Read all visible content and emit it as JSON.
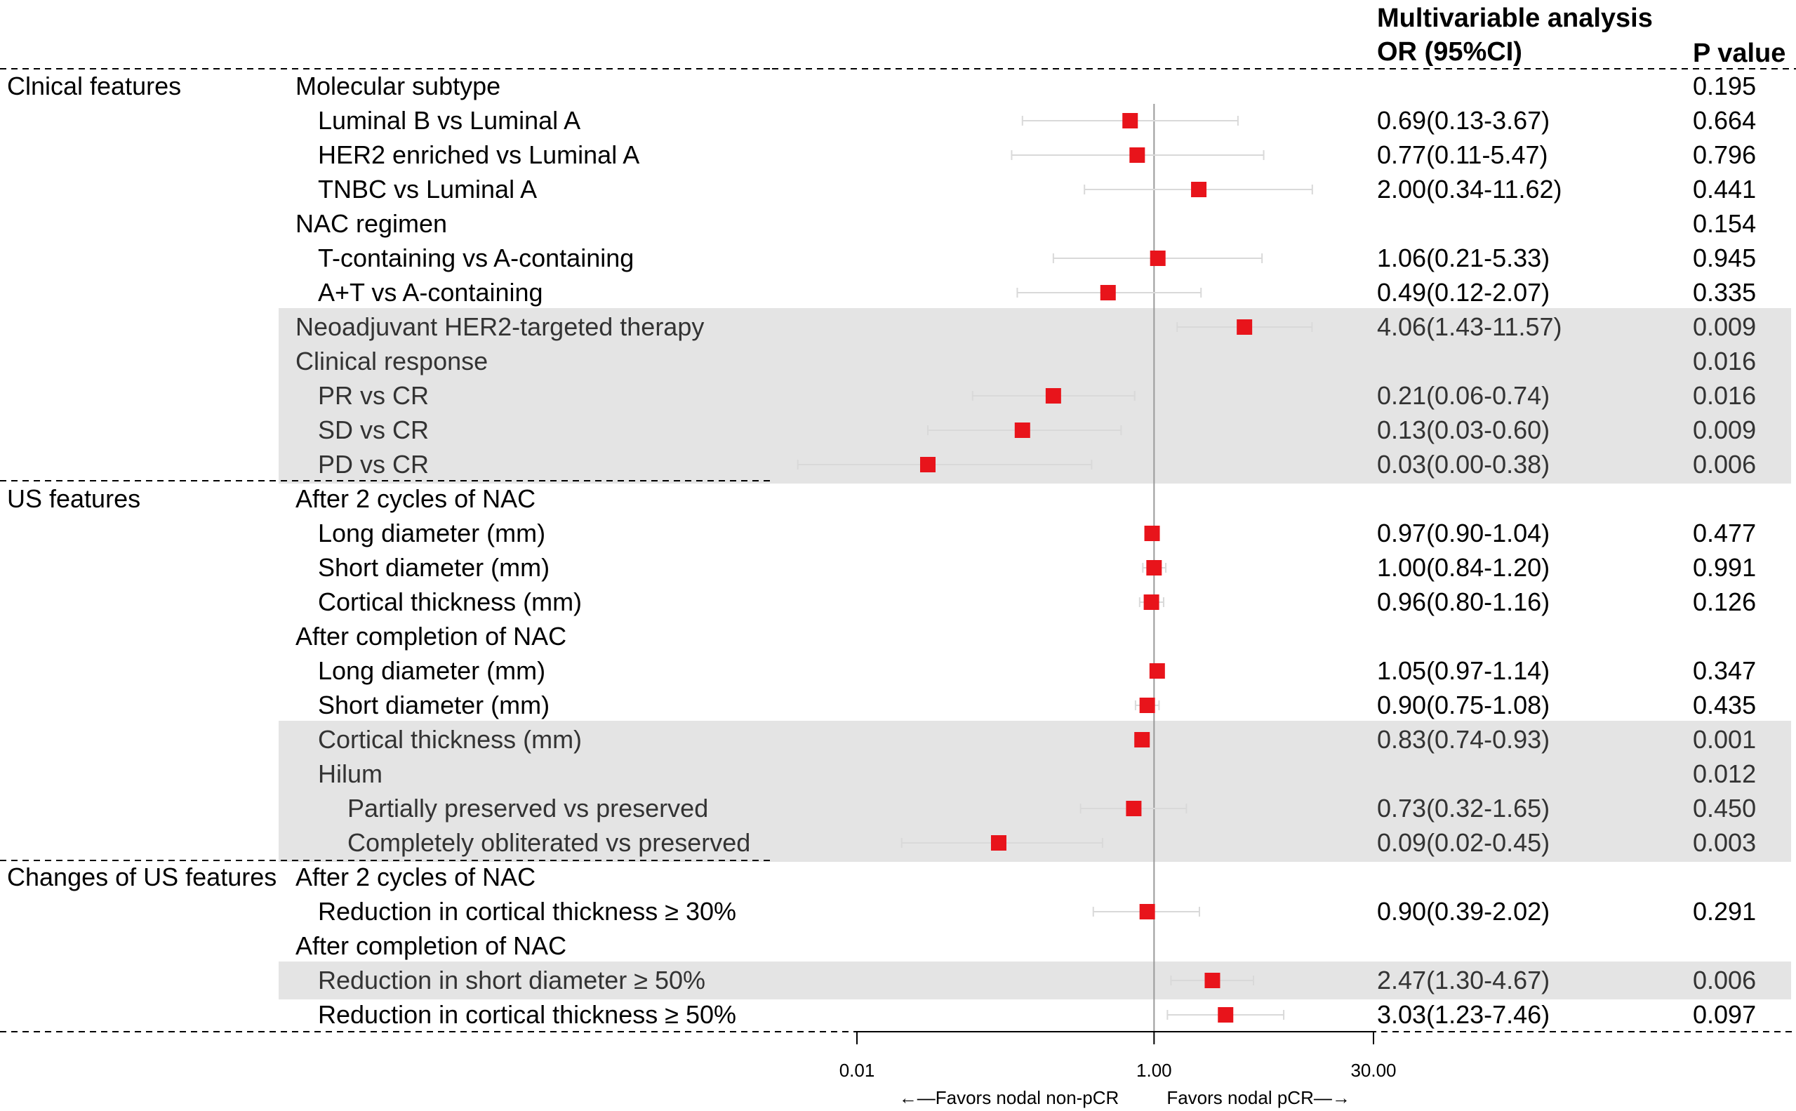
{
  "header": {
    "analysis_title": "Multivariable analysis",
    "or_label": "OR (95%CI)",
    "p_label": "P value"
  },
  "groups": [
    {
      "name": "Clnical features",
      "start_row": 0,
      "end_row": 11
    },
    {
      "name": "US features",
      "start_row": 12,
      "end_row": 22
    },
    {
      "name": "Changes of US features",
      "start_row": 23,
      "end_row": 27
    }
  ],
  "rows": [
    {
      "label": "Molecular subtype",
      "indent": 0,
      "or_text": "",
      "p": "0.195",
      "highlight": false
    },
    {
      "label": "Luminal B vs Luminal A",
      "indent": 1,
      "or_text": "0.69(0.13-3.67)",
      "p": "0.664",
      "highlight": false
    },
    {
      "label": "HER2 enriched vs Luminal A",
      "indent": 1,
      "or_text": "0.77(0.11-5.47)",
      "p": "0.796",
      "highlight": false
    },
    {
      "label": "TNBC vs Luminal A",
      "indent": 1,
      "or_text": "2.00(0.34-11.62)",
      "p": "0.441",
      "highlight": false
    },
    {
      "label": "NAC regimen",
      "indent": 0,
      "or_text": "",
      "p": "0.154",
      "highlight": false
    },
    {
      "label": "T-containing vs A-containing",
      "indent": 1,
      "or_text": "1.06(0.21-5.33)",
      "p": "0.945",
      "highlight": false
    },
    {
      "label": "A+T vs A-containing",
      "indent": 1,
      "or_text": "0.49(0.12-2.07)",
      "p": "0.335",
      "highlight": false
    },
    {
      "label": "Neoadjuvant HER2-targeted therapy",
      "indent": 0,
      "or_text": "4.06(1.43-11.57)",
      "p": "0.009",
      "highlight": true
    },
    {
      "label": "Clinical response",
      "indent": 0,
      "or_text": "",
      "p": "0.016",
      "highlight": true
    },
    {
      "label": "PR vs CR",
      "indent": 1,
      "or_text": "0.21(0.06-0.74)",
      "p": "0.016",
      "highlight": true
    },
    {
      "label": "SD vs CR",
      "indent": 1,
      "or_text": "0.13(0.03-0.60)",
      "p": "0.009",
      "highlight": true
    },
    {
      "label": "PD vs CR",
      "indent": 1,
      "or_text": "0.03(0.00-0.38)",
      "p": "0.006",
      "highlight": true
    },
    {
      "label": "After 2 cycles of NAC",
      "indent": 0,
      "or_text": "",
      "p": "",
      "highlight": false
    },
    {
      "label": "Long diameter (mm)",
      "indent": 1,
      "or_text": "0.97(0.90-1.04)",
      "p": "0.477",
      "highlight": false
    },
    {
      "label": "Short diameter (mm)",
      "indent": 1,
      "or_text": "1.00(0.84-1.20)",
      "p": "0.991",
      "highlight": false
    },
    {
      "label": "Cortical thickness (mm)",
      "indent": 1,
      "or_text": "0.96(0.80-1.16)",
      "p": "0.126",
      "highlight": false
    },
    {
      "label": "After completion of NAC",
      "indent": 0,
      "or_text": "",
      "p": "",
      "highlight": false
    },
    {
      "label": "Long diameter (mm)",
      "indent": 1,
      "or_text": "1.05(0.97-1.14)",
      "p": "0.347",
      "highlight": false
    },
    {
      "label": "Short diameter (mm)",
      "indent": 1,
      "or_text": "0.90(0.75-1.08)",
      "p": "0.435",
      "highlight": false
    },
    {
      "label": "Cortical thickness (mm)",
      "indent": 1,
      "or_text": "0.83(0.74-0.93)",
      "p": "0.001",
      "highlight": true
    },
    {
      "label": "Hilum",
      "indent": 1,
      "or_text": "",
      "p": "0.012",
      "highlight": true
    },
    {
      "label": "Partially preserved vs preserved",
      "indent": 2,
      "or_text": "0.73(0.32-1.65)",
      "p": "0.450",
      "highlight": true
    },
    {
      "label": "Completely obliterated vs preserved",
      "indent": 2,
      "or_text": "0.09(0.02-0.45)",
      "p": "0.003",
      "highlight": true
    },
    {
      "label": "After 2 cycles of NAC",
      "indent": 0,
      "or_text": "",
      "p": "",
      "highlight": false
    },
    {
      "label": "Reduction in cortical thickness ≥ 30%",
      "indent": 1,
      "or_text": "0.90(0.39-2.02)",
      "p": "0.291",
      "highlight": false
    },
    {
      "label": "After completion of NAC",
      "indent": 0,
      "or_text": "",
      "p": "",
      "highlight": false
    },
    {
      "label": "Reduction in short diameter ≥ 50%",
      "indent": 1,
      "or_text": "2.47(1.30-4.67)",
      "p": "0.006",
      "highlight": true
    },
    {
      "label": "Reduction in cortical thickness ≥ 50%",
      "indent": 1,
      "or_text": "3.03(1.23-7.46)",
      "p": "0.097",
      "highlight": false
    }
  ],
  "axis": {
    "ticks": [
      0.01,
      1.0,
      30.0
    ],
    "tick_labels": [
      "0.01",
      "1.00",
      "30.00"
    ],
    "reference": 1.0,
    "scale": "log",
    "favors_left": "←—Favors nodal non-pCR",
    "favors_right": "Favors nodal pCR—→"
  },
  "colors": {
    "marker": "#e8141b",
    "ci_line": "#d9d9d9",
    "highlight_band": "#e4e4e4",
    "reference_line": "#9a9a9a"
  },
  "chart_data": {
    "type": "scatter",
    "title": "Multivariable analysis",
    "xlabel": "OR (95%CI)",
    "ylabel": "",
    "x_scale": "log",
    "xlim": [
      0.01,
      30.0
    ],
    "grid": false,
    "legend": "none",
    "points": [
      {
        "row": 1,
        "or": 0.69,
        "lo": 0.13,
        "hi": 3.67
      },
      {
        "row": 2,
        "or": 0.77,
        "lo": 0.11,
        "hi": 5.47
      },
      {
        "row": 3,
        "or": 2.0,
        "lo": 0.34,
        "hi": 11.62
      },
      {
        "row": 5,
        "or": 1.06,
        "lo": 0.21,
        "hi": 5.33
      },
      {
        "row": 6,
        "or": 0.49,
        "lo": 0.12,
        "hi": 2.07
      },
      {
        "row": 7,
        "or": 4.06,
        "lo": 1.43,
        "hi": 11.57
      },
      {
        "row": 9,
        "or": 0.21,
        "lo": 0.06,
        "hi": 0.74
      },
      {
        "row": 10,
        "or": 0.13,
        "lo": 0.03,
        "hi": 0.6
      },
      {
        "row": 11,
        "or": 0.03,
        "lo": 0.004,
        "hi": 0.38
      },
      {
        "row": 13,
        "or": 0.97,
        "lo": 0.9,
        "hi": 1.04
      },
      {
        "row": 14,
        "or": 1.0,
        "lo": 0.84,
        "hi": 1.2
      },
      {
        "row": 15,
        "or": 0.96,
        "lo": 0.8,
        "hi": 1.16
      },
      {
        "row": 17,
        "or": 1.05,
        "lo": 0.97,
        "hi": 1.14
      },
      {
        "row": 18,
        "or": 0.9,
        "lo": 0.75,
        "hi": 1.08
      },
      {
        "row": 19,
        "or": 0.83,
        "lo": 0.74,
        "hi": 0.93
      },
      {
        "row": 21,
        "or": 0.73,
        "lo": 0.32,
        "hi": 1.65
      },
      {
        "row": 22,
        "or": 0.09,
        "lo": 0.02,
        "hi": 0.45
      },
      {
        "row": 24,
        "or": 0.9,
        "lo": 0.39,
        "hi": 2.02
      },
      {
        "row": 26,
        "or": 2.47,
        "lo": 1.3,
        "hi": 4.67
      },
      {
        "row": 27,
        "or": 3.03,
        "lo": 1.23,
        "hi": 7.46
      }
    ]
  }
}
